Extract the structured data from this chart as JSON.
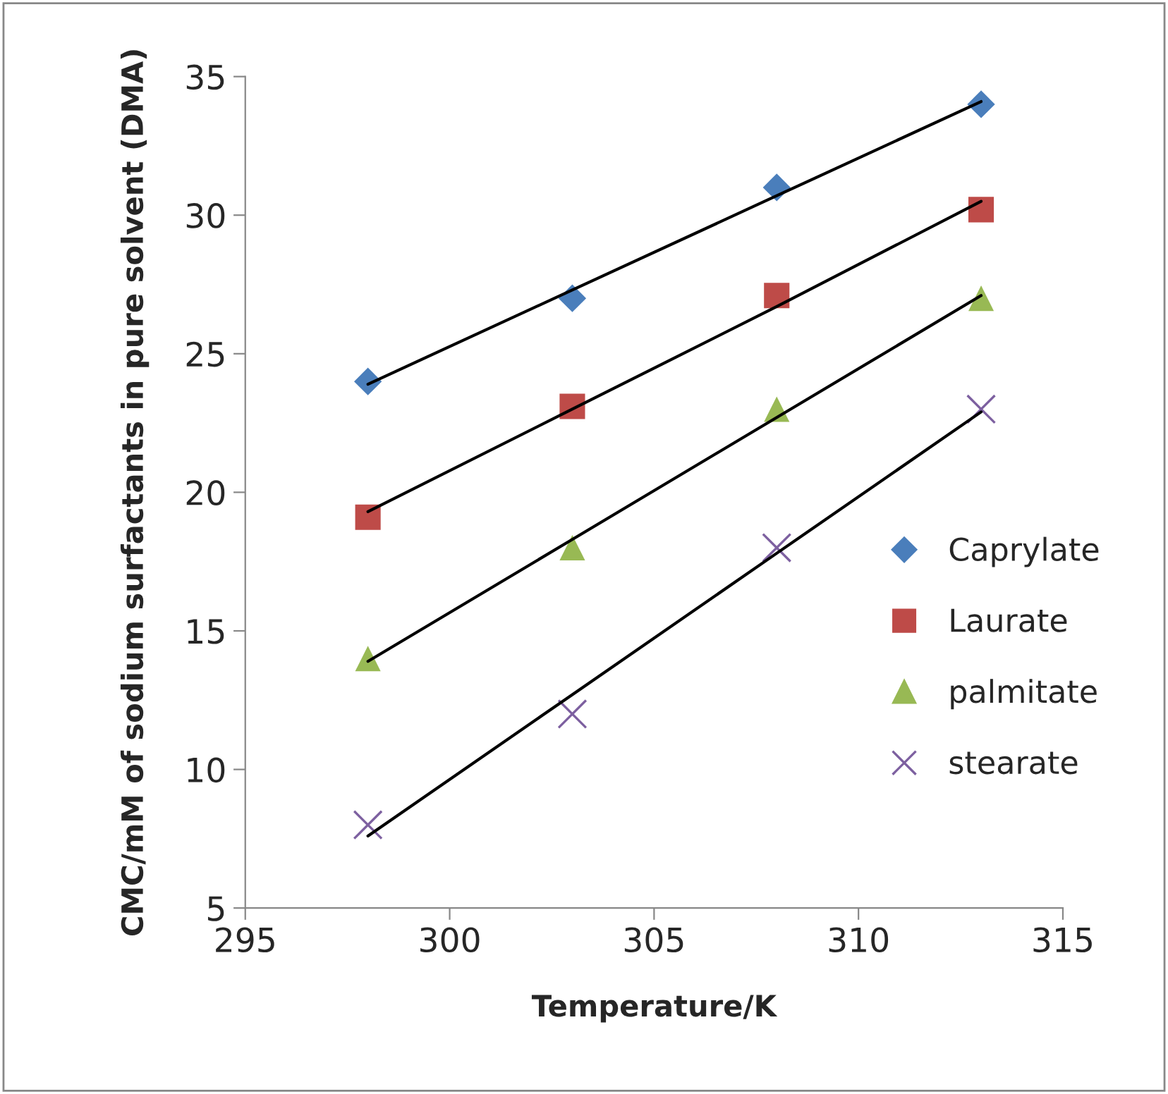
{
  "chart_data": {
    "type": "scatter",
    "xlabel": "Temperature/K",
    "ylabel": "CMC/mM of sodium surfactants in pure solvent (DMA)",
    "x": [
      298,
      303,
      308,
      313
    ],
    "series": [
      {
        "name": "Caprylate",
        "color": "#4a7ebb",
        "marker": "diamond",
        "values": [
          24,
          27,
          31,
          34
        ]
      },
      {
        "name": "Laurate",
        "color": "#be4b48",
        "marker": "square",
        "values": [
          19.1,
          23.1,
          27.1,
          30.2
        ]
      },
      {
        "name": "palmitate",
        "color": "#98b954",
        "marker": "triangle",
        "values": [
          14,
          18,
          23,
          27
        ]
      },
      {
        "name": "stearate",
        "color": "#7d60a0",
        "marker": "cross",
        "values": [
          8,
          12,
          18,
          23
        ]
      },
      {
        "type": "line",
        "color": "#000000",
        "values": [
          23.9,
          27.3,
          30.7,
          34.1
        ]
      },
      {
        "type": "line",
        "color": "#000000",
        "values": [
          19.3,
          23.0,
          26.7,
          30.5
        ]
      },
      {
        "type": "line",
        "color": "#000000",
        "values": [
          13.9,
          18.3,
          22.7,
          27.1
        ]
      },
      {
        "type": "line",
        "color": "#000000",
        "values": [
          7.6,
          12.7,
          17.8,
          22.9
        ]
      }
    ],
    "xlim": [
      295,
      315
    ],
    "xticks": [
      295,
      300,
      305,
      310,
      315
    ],
    "ylim": [
      5,
      35
    ],
    "yticks": [
      5,
      10,
      15,
      20,
      25,
      30,
      35
    ],
    "grid": false,
    "legend": "right"
  }
}
